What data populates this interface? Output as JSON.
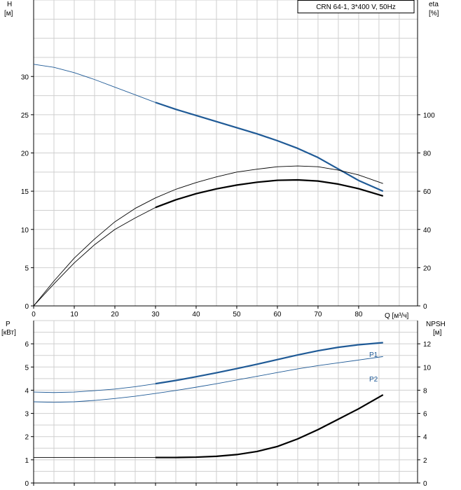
{
  "title_box": {
    "text": "CRN 64-1, 3*400 V, 50Hz"
  },
  "chart_data": [
    {
      "type": "line",
      "title": "CRN 64-1, 3*400 V, 50Hz",
      "xlabel": "Q [м³/ч]",
      "x_ticks": [
        0,
        10,
        20,
        30,
        40,
        50,
        60,
        70,
        80
      ],
      "xlim": [
        0,
        94.5
      ],
      "left_axis": {
        "label_line1": "H",
        "label_line2": "[м]",
        "ylim": [
          0,
          40
        ],
        "ticks": [
          0,
          5,
          10,
          15,
          20,
          25,
          30
        ]
      },
      "right_axis": {
        "label_line1": "eta",
        "label_line2": "[%]",
        "ylim": [
          0,
          160
        ],
        "ticks": [
          0,
          20,
          40,
          60,
          80,
          100
        ]
      },
      "grid": true,
      "series": [
        {
          "axis": "left",
          "color": "#1f5a96",
          "x": [
            0,
            5,
            10,
            15,
            20,
            25,
            30,
            35,
            40,
            45,
            50,
            55,
            60,
            65,
            70,
            75,
            80,
            86
          ],
          "y": [
            31.6,
            31.2,
            30.5,
            29.6,
            28.6,
            27.6,
            26.6,
            25.7,
            24.9,
            24.1,
            23.3,
            22.5,
            21.6,
            20.6,
            19.4,
            17.9,
            16.4,
            15.0
          ],
          "bold_from": 30
        },
        {
          "axis": "right",
          "color": "#000000",
          "x": [
            0,
            5,
            10,
            15,
            20,
            25,
            30,
            35,
            40,
            45,
            50,
            55,
            60,
            65,
            70,
            75,
            80,
            86
          ],
          "y": [
            0,
            13,
            25,
            35,
            44,
            51,
            56.5,
            61,
            64.5,
            67.5,
            70,
            71.5,
            72.8,
            73.2,
            72.8,
            71,
            68.5,
            64
          ],
          "bold_from": 999
        },
        {
          "axis": "right",
          "color": "#000000",
          "x": [
            0,
            5,
            10,
            15,
            20,
            25,
            30,
            35,
            40,
            45,
            50,
            55,
            60,
            65,
            70,
            75,
            80,
            86
          ],
          "y": [
            0,
            11.5,
            22.5,
            32,
            40,
            46,
            51.5,
            55.5,
            58.7,
            61.2,
            63.2,
            64.7,
            65.7,
            65.9,
            65.3,
            63.7,
            61.3,
            57.5
          ],
          "bold_from": 30
        }
      ]
    },
    {
      "type": "line",
      "xlim": [
        0,
        94.5
      ],
      "x_ticks": [
        0,
        10,
        20,
        30,
        40,
        50,
        60,
        70,
        80
      ],
      "left_axis": {
        "label_line1": "P",
        "label_line2": "[кВт]",
        "ylim": [
          0,
          7
        ],
        "ticks": [
          0,
          1,
          2,
          3,
          4,
          5,
          6
        ]
      },
      "right_axis": {
        "label_line1": "NPSH",
        "label_line2": "[м]",
        "ylim": [
          0,
          14
        ],
        "ticks": [
          0,
          2,
          4,
          6,
          8,
          10,
          12
        ]
      },
      "grid": true,
      "series": [
        {
          "name": "P1",
          "axis": "left",
          "color": "#1f5a96",
          "x": [
            0,
            5,
            10,
            15,
            20,
            25,
            30,
            35,
            40,
            45,
            50,
            55,
            60,
            65,
            70,
            75,
            80,
            86
          ],
          "y": [
            3.92,
            3.9,
            3.92,
            3.98,
            4.05,
            4.15,
            4.28,
            4.42,
            4.58,
            4.75,
            4.93,
            5.12,
            5.32,
            5.52,
            5.7,
            5.85,
            5.96,
            6.05
          ],
          "bold_from": 30
        },
        {
          "name": "P2",
          "axis": "left",
          "color": "#1f5a96",
          "x": [
            0,
            5,
            10,
            15,
            20,
            25,
            30,
            35,
            40,
            45,
            50,
            55,
            60,
            65,
            70,
            75,
            80,
            86
          ],
          "y": [
            3.5,
            3.48,
            3.5,
            3.56,
            3.64,
            3.74,
            3.86,
            3.99,
            4.13,
            4.28,
            4.44,
            4.6,
            4.76,
            4.92,
            5.06,
            5.18,
            5.3,
            5.45
          ],
          "bold_from": 999
        },
        {
          "axis": "right",
          "color": "#000000",
          "x": [
            0,
            10,
            20,
            30,
            35,
            40,
            45,
            50,
            55,
            60,
            65,
            70,
            75,
            80,
            86
          ],
          "y": [
            2.2,
            2.2,
            2.2,
            2.2,
            2.2,
            2.23,
            2.3,
            2.45,
            2.72,
            3.15,
            3.8,
            4.6,
            5.5,
            6.4,
            7.6
          ],
          "bold_from": 30
        }
      ]
    }
  ]
}
